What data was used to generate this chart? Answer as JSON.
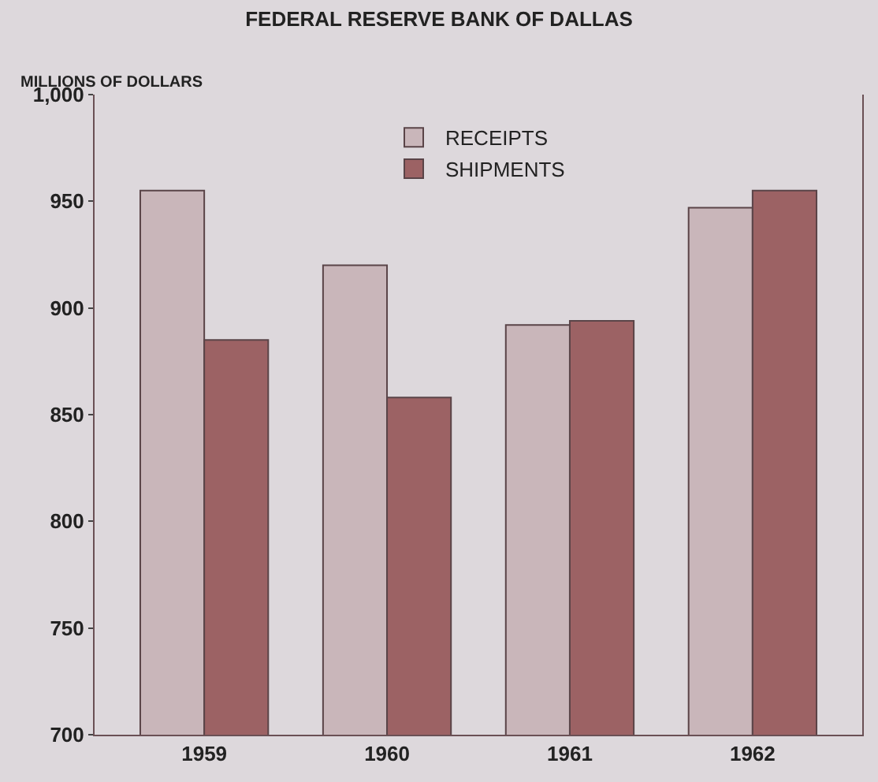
{
  "chart_data": {
    "type": "bar",
    "title": "FEDERAL RESERVE BANK OF DALLAS",
    "ylabel": "MILLIONS OF DOLLARS",
    "categories": [
      "1959",
      "1960",
      "1961",
      "1962"
    ],
    "series": [
      {
        "name": "RECEIPTS",
        "color": "#c9b6ba",
        "values": [
          955,
          920,
          892,
          947
        ]
      },
      {
        "name": "SHIPMENTS",
        "color": "#9c6264",
        "values": [
          885,
          858,
          894,
          955
        ]
      }
    ],
    "ylim": [
      700,
      1000
    ],
    "yticks": [
      700,
      750,
      800,
      850,
      900,
      950,
      {
        "value": 1000,
        "label": "1,000"
      }
    ],
    "grid": false,
    "legend": "top"
  }
}
